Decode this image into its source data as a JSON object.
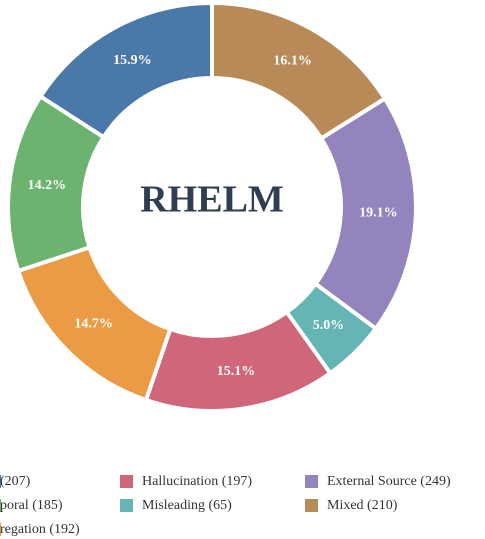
{
  "chart_data": {
    "type": "donut",
    "center_text": "RHELM",
    "values": [
      16.1,
      19.1,
      5.0,
      15.1,
      14.7,
      14.2,
      15.9
    ],
    "value_labels": [
      "16.1%",
      "19.1%",
      "5.0%",
      "15.1%",
      "14.7%",
      "14.2%",
      "15.9%"
    ],
    "colors": [
      "#b88a58",
      "#9484bd",
      "#64b5b3",
      "#d06679",
      "#ea9b43",
      "#6cb36f",
      "#4a78a8"
    ],
    "legend": [
      {
        "label": "(207)",
        "color": "#4a78a8"
      },
      {
        "label": "poral  (185)",
        "color": "#6cb36f"
      },
      {
        "label": "regation  (192)",
        "color": "#ea9b43"
      },
      {
        "label": "Hallucination  (197)",
        "color": "#d06679"
      },
      {
        "label": "Misleading  (65)",
        "color": "#64b5b3"
      },
      {
        "label": "External Source  (249)",
        "color": "#9484bd"
      },
      {
        "label": "Mixed  (210)",
        "color": "#b88a58"
      }
    ]
  }
}
